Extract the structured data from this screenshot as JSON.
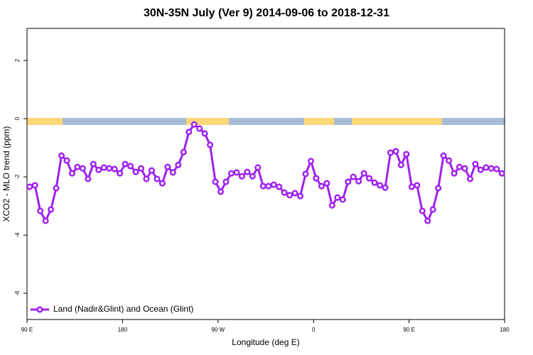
{
  "chart_data": {
    "type": "line",
    "title": "30N-35N July (Ver 9)   2014-09-06 to 2018-12-31",
    "x_label": "Longitude (deg E)",
    "y_label": "XCO2 - MLO trend (ppm)",
    "xlim": [
      90,
      540
    ],
    "ylim": [
      -6.9,
      3.1
    ],
    "xticks": [
      {
        "value": 90,
        "label": "90 E"
      },
      180,
      {
        "value": 270,
        "label": "90 W"
      },
      {
        "value": 360,
        "label": "0"
      },
      {
        "value": 450,
        "label": "90 E"
      },
      {
        "value": 540,
        "label": "180"
      }
    ],
    "yticks": [
      -6,
      -4,
      -2,
      0,
      2
    ],
    "x": [
      92.5,
      97.5,
      102.5,
      107.5,
      112.5,
      117.5,
      122.5,
      127.5,
      132.5,
      137.5,
      142.5,
      147.5,
      152.5,
      157.5,
      162.5,
      167.5,
      172.5,
      177.5,
      182.5,
      187.5,
      192.5,
      197.5,
      202.5,
      207.5,
      212.5,
      217.5,
      222.5,
      227.5,
      232.5,
      237.5,
      242.5,
      247.5,
      252.5,
      257.5,
      262.5,
      267.5,
      272.5,
      277.5,
      282.5,
      287.5,
      292.5,
      297.5,
      302.5,
      307.5,
      312.5,
      317.5,
      322.5,
      327.5,
      332.5,
      337.5,
      342.5,
      347.5,
      352.5,
      357.5,
      362.5,
      367.5,
      372.5,
      377.5,
      382.5,
      387.5,
      392.5,
      397.5,
      402.5,
      407.5,
      412.5,
      417.5,
      422.5,
      427.5,
      432.5,
      437.5,
      442.5,
      447.5,
      452.5,
      457.5,
      462.5,
      467.5,
      472.5,
      477.5,
      482.5,
      487.5,
      492.5,
      497.5,
      502.5,
      507.5,
      512.5,
      517.5,
      522.5,
      527.5,
      532.5,
      537.5
    ],
    "series": [
      {
        "name": "Land (Nadir&Glint) and Ocean (Glint)",
        "color": "#a020f0",
        "values": [
          -2.34,
          -2.29,
          -3.17,
          -3.51,
          -3.12,
          -2.39,
          -1.27,
          -1.44,
          -1.88,
          -1.66,
          -1.71,
          -2.07,
          -1.56,
          -1.76,
          -1.68,
          -1.71,
          -1.73,
          -1.88,
          -1.56,
          -1.63,
          -1.83,
          -1.71,
          -2.07,
          -1.78,
          -2.07,
          -2.22,
          -1.66,
          -1.85,
          -1.59,
          -1.15,
          -0.46,
          -0.2,
          -0.34,
          -0.51,
          -0.9,
          -2.17,
          -2.51,
          -2.17,
          -1.88,
          -1.85,
          -1.98,
          -1.83,
          -1.98,
          -1.68,
          -2.32,
          -2.32,
          -2.27,
          -2.34,
          -2.54,
          -2.63,
          -2.56,
          -2.66,
          -1.9,
          -1.46,
          -2.05,
          -2.32,
          -2.22,
          -2.98,
          -2.71,
          -2.78,
          -2.17,
          -2.0,
          -2.15,
          -1.88,
          -2.05,
          -2.2,
          -2.29,
          -2.37,
          -1.17,
          -1.12,
          -1.59,
          -1.22,
          -2.34,
          -2.29,
          -3.17,
          -3.51,
          -3.12,
          -2.39,
          -1.27,
          -1.44,
          -1.88,
          -1.66,
          -1.71,
          -2.07,
          -1.56,
          -1.76,
          -1.68,
          -1.71,
          -1.73,
          -1.88
        ]
      }
    ],
    "legend": "bottom-left"
  }
}
